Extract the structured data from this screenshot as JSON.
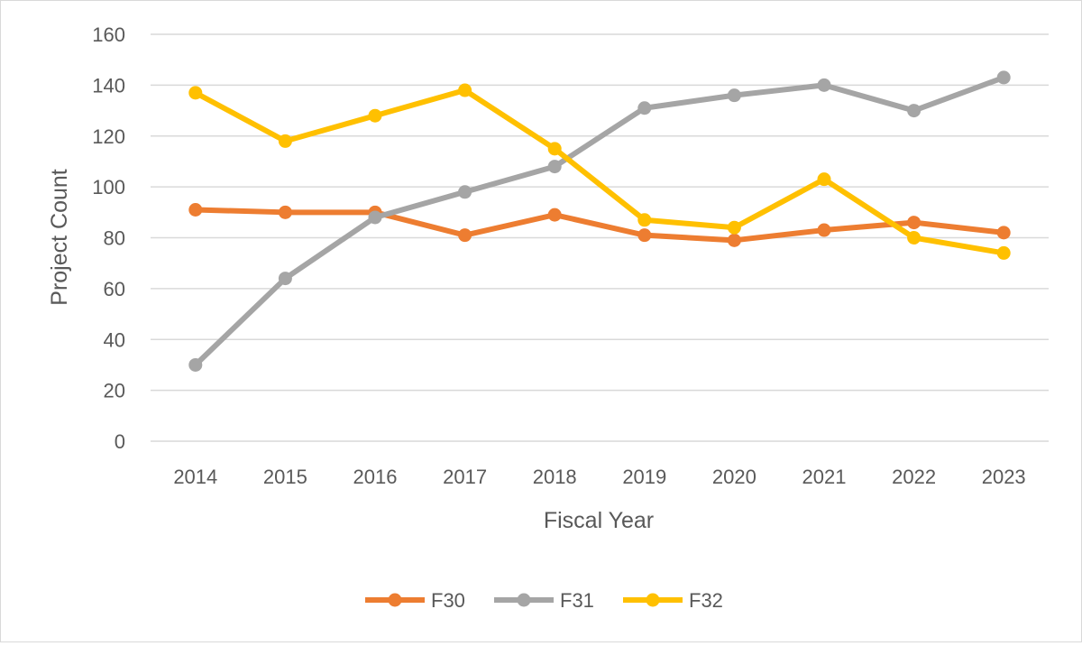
{
  "chart_data": {
    "type": "line",
    "title": "",
    "xlabel": "Fiscal Year",
    "ylabel": "Project Count",
    "ylim": [
      0,
      160
    ],
    "yticks": [
      "0",
      "20",
      "40",
      "60",
      "80",
      "100",
      "120",
      "140",
      "160"
    ],
    "grid": "horizontal",
    "legend": "bottom",
    "categories": [
      "2014",
      "2015",
      "2016",
      "2017",
      "2018",
      "2019",
      "2020",
      "2021",
      "2022",
      "2023"
    ],
    "series": [
      {
        "name": "F30",
        "color": "#ED7D31",
        "values": [
          91,
          90,
          90,
          81,
          89,
          81,
          79,
          83,
          86,
          82
        ]
      },
      {
        "name": "F31",
        "color": "#A5A5A5",
        "values": [
          30,
          64,
          88,
          98,
          108,
          131,
          136,
          140,
          130,
          143
        ]
      },
      {
        "name": "F32",
        "color": "#FFC000",
        "values": [
          137,
          118,
          128,
          138,
          115,
          87,
          84,
          103,
          80,
          74
        ]
      }
    ]
  }
}
